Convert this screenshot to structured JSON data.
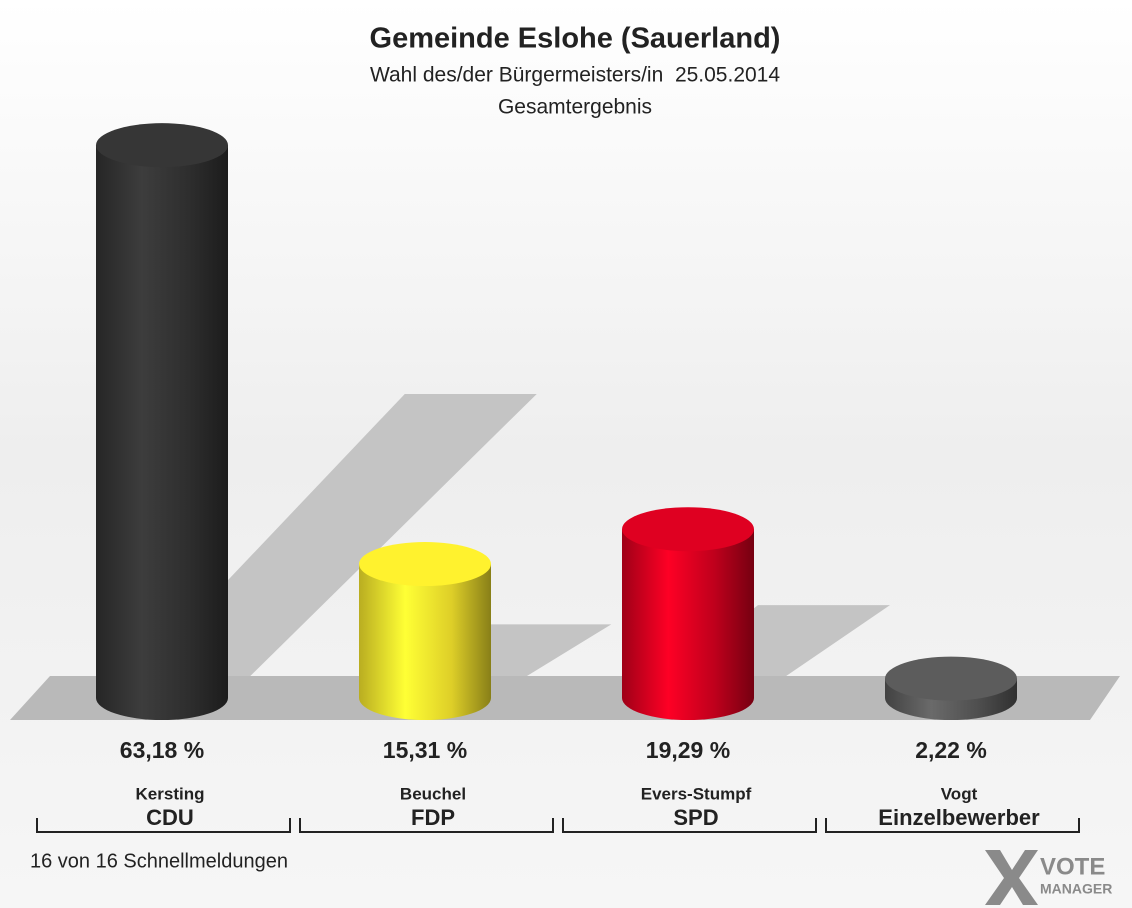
{
  "chart_data": {
    "type": "bar",
    "title": "Gemeinde Eslohe (Sauerland)",
    "subtitle": "Wahl des/der Bürgermeisters/in  25.05.2014",
    "subtitle2": "Gesamtergebnis",
    "categories": [
      "Kersting",
      "Beuchel",
      "Evers-Stumpf",
      "Vogt"
    ],
    "parties": [
      "CDU",
      "FDP",
      "SPD",
      "Einzelbewerber"
    ],
    "values": [
      63.18,
      15.31,
      19.29,
      2.22
    ],
    "value_labels": [
      "63,18 %",
      "15,31 %",
      "19,29 %",
      "2,22 %"
    ],
    "colors": [
      "#333333",
      "#f7e62c",
      "#d4001f",
      "#585858"
    ],
    "footer": "16 von 16 Schnellmeldungen",
    "logo": [
      "VOTE",
      "MANAGER"
    ]
  }
}
